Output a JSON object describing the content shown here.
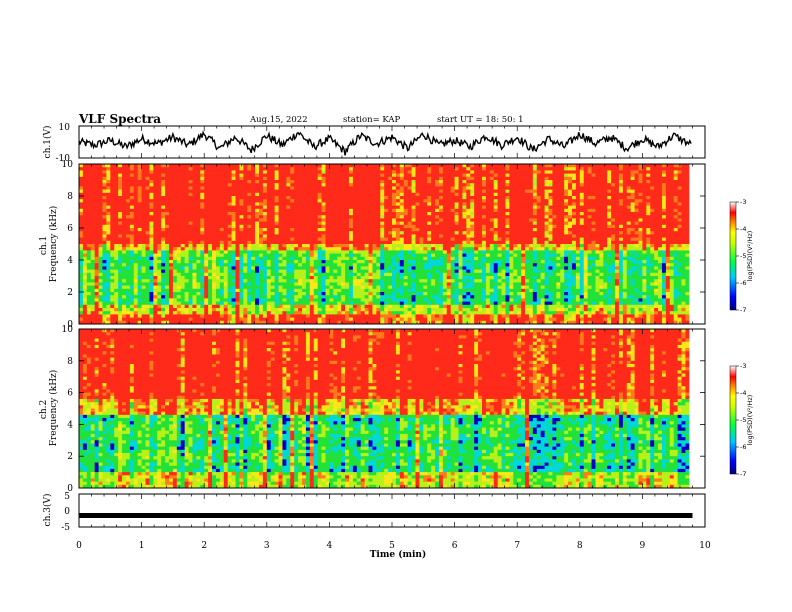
{
  "header": {
    "title": "VLF Spectra",
    "date": "Aug.15, 2022",
    "station": "station= KAP",
    "start": "start  UT  =   18: 50: 1"
  },
  "chart_data": [
    {
      "type": "line",
      "panel": "ch1-waveform",
      "ylabel": "ch.1(V)",
      "ylim": [
        -10,
        10
      ],
      "yticks": [
        "10",
        "-10"
      ],
      "xlim": [
        0,
        10
      ],
      "x": [
        0,
        0.25,
        0.5,
        0.75,
        1.0,
        1.25,
        1.5,
        1.75,
        2.0,
        2.25,
        2.5,
        2.75,
        3.0,
        3.25,
        3.5,
        3.75,
        4.0,
        4.25,
        4.5,
        4.75,
        5.0,
        5.25,
        5.5,
        5.75,
        6.0,
        6.25,
        6.5,
        6.75,
        7.0,
        7.25,
        7.5,
        7.75,
        8.0,
        8.25,
        8.5,
        8.75,
        9.0,
        9.25,
        9.5,
        9.8
      ],
      "values": [
        0,
        -2,
        1,
        -3,
        2,
        -1,
        3,
        -2,
        5,
        -4,
        3,
        -5,
        4,
        -2,
        6,
        -3,
        2,
        -6,
        4,
        -1,
        3,
        -4,
        5,
        -2,
        1,
        -3,
        4,
        -2,
        3,
        -5,
        2,
        -3,
        5,
        -1,
        3,
        -4,
        2,
        -3,
        4,
        -2
      ],
      "color": "#000000"
    },
    {
      "type": "heatmap",
      "panel": "ch1-spectrogram",
      "ylabel": "ch.1\nFrequency (kHz)",
      "ylim": [
        0,
        10
      ],
      "yticks": [
        "0",
        "2",
        "4",
        "6",
        "8",
        "10"
      ],
      "xlim": [
        0,
        10
      ],
      "colorbar": {
        "label": "log(PSD)(V²/Hz)",
        "range": [
          -7,
          -3
        ],
        "ticks": [
          "-3",
          "-4",
          "-5",
          "-6",
          "-7"
        ]
      }
    },
    {
      "type": "heatmap",
      "panel": "ch2-spectrogram",
      "ylabel": "ch.2\nFrequency (kHz)",
      "ylim": [
        0,
        10
      ],
      "yticks": [
        "0",
        "2",
        "4",
        "6",
        "8",
        "10"
      ],
      "xlim": [
        0,
        10
      ],
      "colorbar": {
        "label": "log(PSD)(V²/Hz)",
        "range": [
          -7,
          -3
        ],
        "ticks": [
          "-3",
          "-4",
          "-5",
          "-6",
          "-7"
        ]
      }
    },
    {
      "type": "line",
      "panel": "ch3-waveform",
      "ylabel": "ch.3(V)",
      "ylim": [
        -5,
        5
      ],
      "yticks": [
        "5",
        "0",
        "-5"
      ],
      "xlim": [
        0,
        10
      ],
      "x": [
        0,
        9.8
      ],
      "values": [
        -1.5,
        -1.5
      ],
      "color": "#000000"
    }
  ],
  "xaxis": {
    "label": "Time  (min)",
    "ticks": [
      "0",
      "1",
      "2",
      "3",
      "4",
      "5",
      "6",
      "7",
      "8",
      "9",
      "10"
    ]
  },
  "colors": {
    "hot": "#ff2a1a",
    "warm": "#ffe619",
    "mid": "#22e23a",
    "cool": "#00d8d8",
    "cold": "#0000c8"
  }
}
